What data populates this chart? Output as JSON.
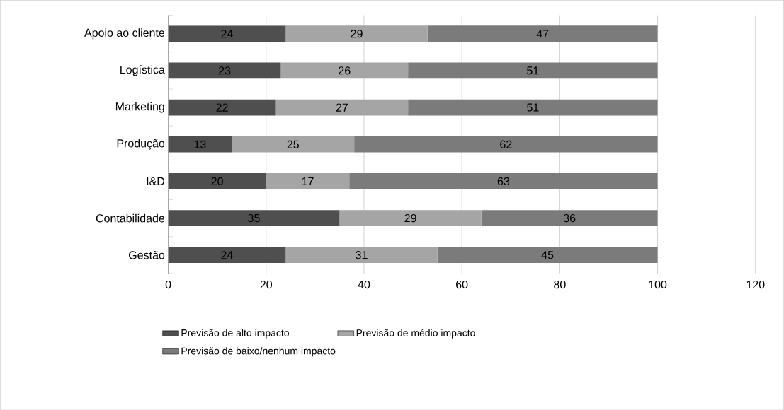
{
  "chart_data": {
    "type": "bar",
    "orientation": "horizontal",
    "stacked": true,
    "categories": [
      "Apoio ao cliente",
      "Logística",
      "Marketing",
      "Produção",
      "I&D",
      "Contabilidade",
      "Gestão"
    ],
    "series": [
      {
        "name": "Previsão de alto impacto",
        "color": "#4f4f4f",
        "values": [
          24,
          23,
          22,
          13,
          20,
          35,
          24
        ]
      },
      {
        "name": "Previsão de médio impacto",
        "color": "#a5a5a5",
        "values": [
          29,
          26,
          27,
          25,
          17,
          29,
          31
        ]
      },
      {
        "name": "Previsão de baixo/nenhum impacto",
        "color": "#7b7b7b",
        "values": [
          47,
          51,
          51,
          62,
          63,
          36,
          45
        ]
      }
    ],
    "xlim": [
      0,
      120
    ],
    "xticks": [
      0,
      20,
      40,
      60,
      80,
      100,
      120
    ],
    "grid": "x",
    "legend": "bottom",
    "data_labels": true
  }
}
